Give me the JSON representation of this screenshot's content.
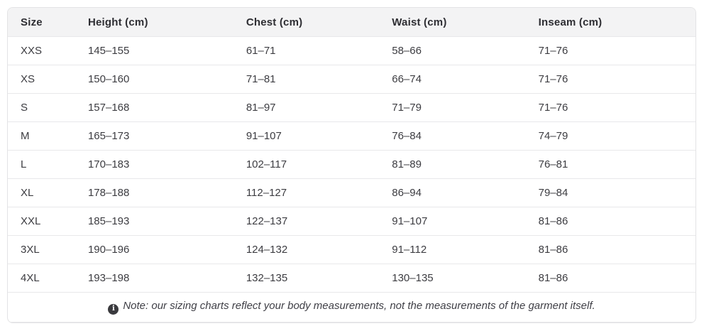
{
  "colors": {
    "header_background": "#f3f3f4",
    "outer_border": "#e3e3e5",
    "row_divider": "#e8e8ea",
    "body_text": "#3c3c41",
    "header_text": "#2e2e33",
    "note_icon_background": "#3a3a3e"
  },
  "table": {
    "columns": [
      {
        "key": "size",
        "label": "Size"
      },
      {
        "key": "height",
        "label": "Height (cm)"
      },
      {
        "key": "chest",
        "label": "Chest (cm)"
      },
      {
        "key": "waist",
        "label": "Waist (cm)"
      },
      {
        "key": "inseam",
        "label": "Inseam (cm)"
      }
    ],
    "rows": [
      {
        "size": "XXS",
        "height": "145–155",
        "chest": "61–71",
        "waist": "58–66",
        "inseam": "71–76"
      },
      {
        "size": "XS",
        "height": "150–160",
        "chest": "71–81",
        "waist": "66–74",
        "inseam": "71–76"
      },
      {
        "size": "S",
        "height": "157–168",
        "chest": "81–97",
        "waist": "71–79",
        "inseam": "71–76"
      },
      {
        "size": "M",
        "height": "165–173",
        "chest": "91–107",
        "waist": "76–84",
        "inseam": "74–79"
      },
      {
        "size": "L",
        "height": "170–183",
        "chest": "102–117",
        "waist": "81–89",
        "inseam": "76–81"
      },
      {
        "size": "XL",
        "height": "178–188",
        "chest": "112–127",
        "waist": "86–94",
        "inseam": "79–84"
      },
      {
        "size": "XXL",
        "height": "185–193",
        "chest": "122–137",
        "waist": "91–107",
        "inseam": "81–86"
      },
      {
        "size": "3XL",
        "height": "190–196",
        "chest": "124–132",
        "waist": "91–112",
        "inseam": "81–86"
      },
      {
        "size": "4XL",
        "height": "193–198",
        "chest": "132–135",
        "waist": "130–135",
        "inseam": "81–86"
      }
    ],
    "note": {
      "icon_glyph": "i",
      "text": "Note: our sizing charts reflect your body measurements, not the measurements of the garment itself."
    }
  },
  "chart_data": {
    "type": "table",
    "columns": [
      "Size",
      "Height (cm)",
      "Chest (cm)",
      "Waist (cm)",
      "Inseam (cm)"
    ],
    "rows": [
      [
        "XXS",
        "145–155",
        "61–71",
        "58–66",
        "71–76"
      ],
      [
        "XS",
        "150–160",
        "71–81",
        "66–74",
        "71–76"
      ],
      [
        "S",
        "157–168",
        "81–97",
        "71–79",
        "71–76"
      ],
      [
        "M",
        "165–173",
        "91–107",
        "76–84",
        "74–79"
      ],
      [
        "L",
        "170–183",
        "102–117",
        "81–89",
        "76–81"
      ],
      [
        "XL",
        "178–188",
        "112–127",
        "86–94",
        "79–84"
      ],
      [
        "XXL",
        "185–193",
        "122–137",
        "91–107",
        "81–86"
      ],
      [
        "3XL",
        "190–196",
        "124–132",
        "91–112",
        "81–86"
      ],
      [
        "4XL",
        "193–198",
        "132–135",
        "130–135",
        "81–86"
      ]
    ],
    "footnote": "Note: our sizing charts reflect your body measurements, not the measurements of the garment itself."
  }
}
